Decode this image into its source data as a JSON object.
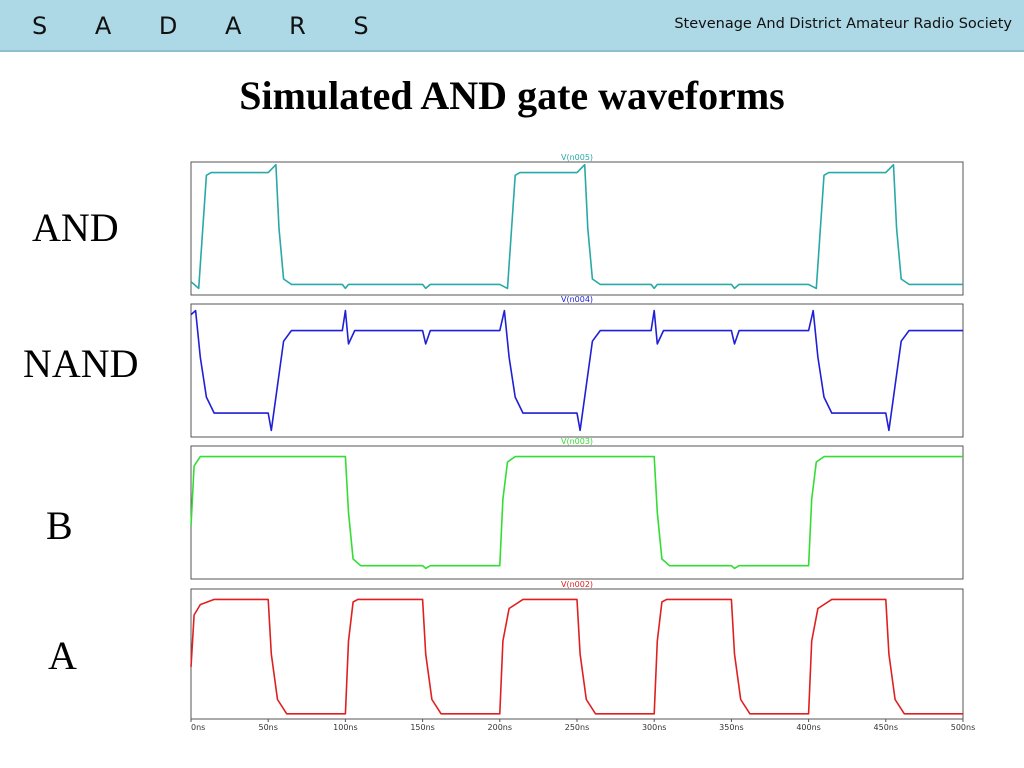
{
  "header": {
    "brand": "S A D A R S",
    "society": "Stevenage And District Amateur Radio Society"
  },
  "title": "Simulated AND gate waveforms",
  "labels": {
    "and": "AND",
    "nand": "NAND",
    "b": "B",
    "a": "A"
  },
  "chart_data": {
    "type": "line",
    "title": "",
    "x_unit": "ns",
    "xlim": [
      0,
      500
    ],
    "x_ticks": [
      "0ns",
      "50ns",
      "100ns",
      "150ns",
      "200ns",
      "250ns",
      "300ns",
      "350ns",
      "400ns",
      "450ns",
      "500ns"
    ],
    "grid": false,
    "series": [
      {
        "name": "V(n005)",
        "row_label": "AND",
        "color": "#2aa8a8",
        "points": [
          [
            0,
            0.1
          ],
          [
            5,
            0.05
          ],
          [
            10,
            0.9
          ],
          [
            13,
            0.92
          ],
          [
            50,
            0.92
          ],
          [
            55,
            0.98
          ],
          [
            57,
            0.5
          ],
          [
            60,
            0.12
          ],
          [
            65,
            0.08
          ],
          [
            98,
            0.08
          ],
          [
            100,
            0.05
          ],
          [
            102,
            0.08
          ],
          [
            150,
            0.08
          ],
          [
            152,
            0.05
          ],
          [
            155,
            0.08
          ],
          [
            200,
            0.08
          ],
          [
            205,
            0.05
          ],
          [
            210,
            0.9
          ],
          [
            213,
            0.92
          ],
          [
            250,
            0.92
          ],
          [
            255,
            0.98
          ],
          [
            257,
            0.5
          ],
          [
            260,
            0.12
          ],
          [
            265,
            0.08
          ],
          [
            298,
            0.08
          ],
          [
            300,
            0.05
          ],
          [
            302,
            0.08
          ],
          [
            350,
            0.08
          ],
          [
            352,
            0.05
          ],
          [
            355,
            0.08
          ],
          [
            400,
            0.08
          ],
          [
            405,
            0.05
          ],
          [
            410,
            0.9
          ],
          [
            413,
            0.92
          ],
          [
            450,
            0.92
          ],
          [
            455,
            0.98
          ],
          [
            457,
            0.5
          ],
          [
            460,
            0.12
          ],
          [
            465,
            0.08
          ],
          [
            500,
            0.08
          ]
        ]
      },
      {
        "name": "V(n004)",
        "row_label": "NAND",
        "color": "#1f1fd6",
        "points": [
          [
            0,
            0.92
          ],
          [
            3,
            0.95
          ],
          [
            6,
            0.6
          ],
          [
            10,
            0.3
          ],
          [
            15,
            0.18
          ],
          [
            50,
            0.18
          ],
          [
            52,
            0.05
          ],
          [
            55,
            0.3
          ],
          [
            60,
            0.72
          ],
          [
            65,
            0.8
          ],
          [
            98,
            0.8
          ],
          [
            100,
            0.95
          ],
          [
            102,
            0.7
          ],
          [
            106,
            0.8
          ],
          [
            150,
            0.8
          ],
          [
            152,
            0.7
          ],
          [
            155,
            0.8
          ],
          [
            200,
            0.8
          ],
          [
            203,
            0.95
          ],
          [
            206,
            0.6
          ],
          [
            210,
            0.3
          ],
          [
            215,
            0.18
          ],
          [
            250,
            0.18
          ],
          [
            252,
            0.05
          ],
          [
            255,
            0.3
          ],
          [
            260,
            0.72
          ],
          [
            265,
            0.8
          ],
          [
            298,
            0.8
          ],
          [
            300,
            0.95
          ],
          [
            302,
            0.7
          ],
          [
            306,
            0.8
          ],
          [
            350,
            0.8
          ],
          [
            352,
            0.7
          ],
          [
            355,
            0.8
          ],
          [
            400,
            0.8
          ],
          [
            403,
            0.95
          ],
          [
            406,
            0.6
          ],
          [
            410,
            0.3
          ],
          [
            415,
            0.18
          ],
          [
            450,
            0.18
          ],
          [
            452,
            0.05
          ],
          [
            455,
            0.3
          ],
          [
            460,
            0.72
          ],
          [
            465,
            0.8
          ],
          [
            500,
            0.8
          ]
        ]
      },
      {
        "name": "V(n003)",
        "row_label": "B",
        "color": "#33dd33",
        "points": [
          [
            0,
            0.4
          ],
          [
            2,
            0.85
          ],
          [
            6,
            0.92
          ],
          [
            100,
            0.92
          ],
          [
            102,
            0.5
          ],
          [
            105,
            0.15
          ],
          [
            110,
            0.1
          ],
          [
            150,
            0.1
          ],
          [
            152,
            0.08
          ],
          [
            155,
            0.1
          ],
          [
            200,
            0.1
          ],
          [
            202,
            0.6
          ],
          [
            205,
            0.88
          ],
          [
            210,
            0.92
          ],
          [
            300,
            0.92
          ],
          [
            302,
            0.5
          ],
          [
            305,
            0.15
          ],
          [
            310,
            0.1
          ],
          [
            350,
            0.1
          ],
          [
            352,
            0.08
          ],
          [
            355,
            0.1
          ],
          [
            400,
            0.1
          ],
          [
            402,
            0.6
          ],
          [
            405,
            0.88
          ],
          [
            410,
            0.92
          ],
          [
            500,
            0.92
          ]
        ]
      },
      {
        "name": "V(n002)",
        "row_label": "A",
        "color": "#e02020",
        "points": [
          [
            0,
            0.4
          ],
          [
            2,
            0.8
          ],
          [
            6,
            0.88
          ],
          [
            15,
            0.92
          ],
          [
            50,
            0.92
          ],
          [
            52,
            0.5
          ],
          [
            56,
            0.15
          ],
          [
            62,
            0.04
          ],
          [
            100,
            0.04
          ],
          [
            102,
            0.6
          ],
          [
            105,
            0.9
          ],
          [
            108,
            0.92
          ],
          [
            150,
            0.92
          ],
          [
            152,
            0.5
          ],
          [
            156,
            0.15
          ],
          [
            162,
            0.04
          ],
          [
            200,
            0.04
          ],
          [
            202,
            0.6
          ],
          [
            206,
            0.85
          ],
          [
            215,
            0.92
          ],
          [
            250,
            0.92
          ],
          [
            252,
            0.5
          ],
          [
            256,
            0.15
          ],
          [
            262,
            0.04
          ],
          [
            300,
            0.04
          ],
          [
            302,
            0.6
          ],
          [
            305,
            0.9
          ],
          [
            308,
            0.92
          ],
          [
            350,
            0.92
          ],
          [
            352,
            0.5
          ],
          [
            356,
            0.15
          ],
          [
            362,
            0.04
          ],
          [
            400,
            0.04
          ],
          [
            402,
            0.6
          ],
          [
            406,
            0.85
          ],
          [
            415,
            0.92
          ],
          [
            450,
            0.92
          ],
          [
            452,
            0.5
          ],
          [
            456,
            0.15
          ],
          [
            462,
            0.04
          ],
          [
            500,
            0.04
          ]
        ]
      }
    ]
  }
}
